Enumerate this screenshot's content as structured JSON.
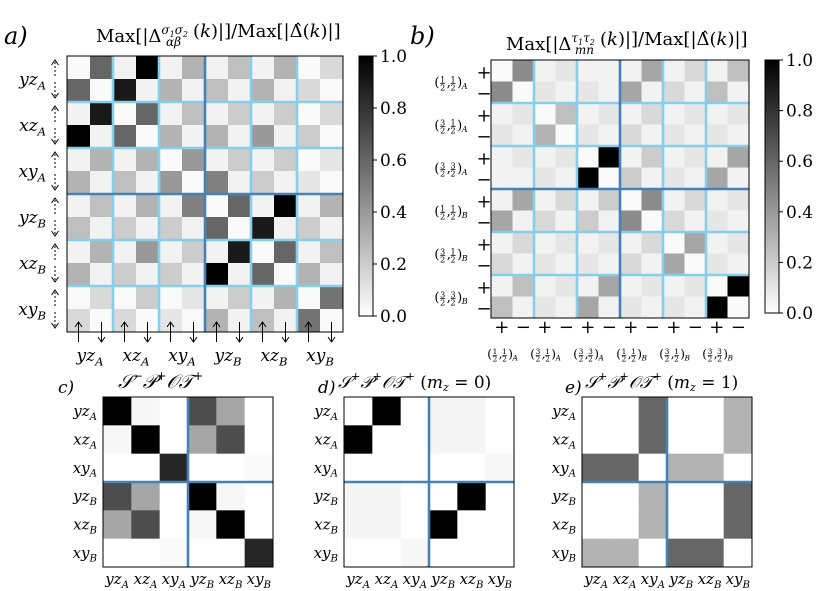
{
  "panel_letters": {
    "a": "a)",
    "b": "b)",
    "c": "c)",
    "d": "d)",
    "e": "e)"
  },
  "colors": {
    "thin_grid": "#87ceeb",
    "thick_grid": "#4682b4",
    "cmap_low": "#ffffff",
    "cmap_high": "#000000"
  },
  "chart_data": [
    {
      "id": "a",
      "type": "heatmap",
      "title": "Max[|Δ^{σ1σ2}_{αβ}(k)|]/Max[|Δ̂(k)|]",
      "row_labels": [
        "yz_A",
        "xz_A",
        "xy_A",
        "yz_B",
        "xz_B",
        "xy_B"
      ],
      "col_labels": [
        "yz_A",
        "xz_A",
        "xy_A",
        "yz_B",
        "xz_B",
        "xy_B"
      ],
      "spin_labels": [
        "↑",
        "↓"
      ],
      "colorbar": {
        "ticks": [
          0.0,
          0.2,
          0.4,
          0.6,
          0.8,
          1.0
        ],
        "tick_labels": [
          "0.0",
          "0.2",
          "0.4",
          "0.6",
          "0.8",
          "1.0"
        ]
      },
      "values": [
        [
          0.02,
          0.6,
          0.05,
          1.0,
          0.05,
          0.3,
          0.05,
          0.25,
          0.05,
          0.3,
          0.02,
          0.15
        ],
        [
          0.6,
          0.02,
          0.9,
          0.05,
          0.3,
          0.05,
          0.25,
          0.05,
          0.3,
          0.05,
          0.15,
          0.02
        ],
        [
          0.05,
          0.9,
          0.02,
          0.6,
          0.05,
          0.25,
          0.05,
          0.2,
          0.05,
          0.2,
          0.02,
          0.15
        ],
        [
          1.0,
          0.05,
          0.6,
          0.02,
          0.3,
          0.05,
          0.3,
          0.05,
          0.4,
          0.05,
          0.2,
          0.02
        ],
        [
          0.05,
          0.3,
          0.05,
          0.3,
          0.02,
          0.4,
          0.05,
          0.2,
          0.05,
          0.2,
          0.02,
          0.1
        ],
        [
          0.3,
          0.05,
          0.25,
          0.05,
          0.4,
          0.02,
          0.5,
          0.05,
          0.2,
          0.05,
          0.1,
          0.02
        ],
        [
          0.05,
          0.25,
          0.05,
          0.3,
          0.05,
          0.5,
          0.02,
          0.6,
          0.05,
          1.0,
          0.05,
          0.3
        ],
        [
          0.25,
          0.05,
          0.2,
          0.05,
          0.2,
          0.05,
          0.6,
          0.02,
          0.9,
          0.05,
          0.2,
          0.05
        ],
        [
          0.05,
          0.3,
          0.05,
          0.4,
          0.05,
          0.2,
          0.05,
          0.9,
          0.02,
          0.6,
          0.05,
          0.25
        ],
        [
          0.3,
          0.05,
          0.2,
          0.05,
          0.2,
          0.05,
          1.0,
          0.05,
          0.6,
          0.02,
          0.3,
          0.05
        ],
        [
          0.02,
          0.15,
          0.02,
          0.2,
          0.02,
          0.1,
          0.05,
          0.2,
          0.05,
          0.3,
          0.02,
          0.55
        ],
        [
          0.15,
          0.02,
          0.15,
          0.02,
          0.1,
          0.02,
          0.3,
          0.05,
          0.25,
          0.05,
          0.55,
          0.02
        ]
      ]
    },
    {
      "id": "b",
      "type": "heatmap",
      "title": "Max[|Δ^{τ1τ2}_{mn}(k)|]/Max[|Δ̂(k)|]",
      "row_labels": [
        "(1/2,1/2)_A",
        "(3/2,1/2)_A",
        "(3/2,3/2)_A",
        "(1/2,1/2)_B",
        "(3/2,1/2)_B",
        "(3/2,3/2)_B"
      ],
      "col_labels": [
        "(1/2,1/2)_A",
        "(3/2,1/2)_A",
        "(3/2,3/2)_A",
        "(1/2,1/2)_B",
        "(3/2,1/2)_B",
        "(3/2,3/2)_B"
      ],
      "sign_labels": [
        "+",
        "−"
      ],
      "colorbar": {
        "ticks": [
          0.0,
          0.2,
          0.4,
          0.6,
          0.8,
          1.0
        ],
        "tick_labels": [
          "0.0",
          "0.2",
          "0.4",
          "0.6",
          "0.8",
          "1.0"
        ]
      },
      "values": [
        [
          0.02,
          0.45,
          0.05,
          0.1,
          0.05,
          0.05,
          0.05,
          0.35,
          0.05,
          0.15,
          0.05,
          0.25
        ],
        [
          0.45,
          0.02,
          0.1,
          0.05,
          0.1,
          0.05,
          0.35,
          0.05,
          0.15,
          0.05,
          0.25,
          0.05
        ],
        [
          0.05,
          0.1,
          0.02,
          0.25,
          0.05,
          0.1,
          0.05,
          0.15,
          0.05,
          0.1,
          0.05,
          0.1
        ],
        [
          0.1,
          0.05,
          0.3,
          0.02,
          0.1,
          0.05,
          0.15,
          0.05,
          0.1,
          0.05,
          0.1,
          0.05
        ],
        [
          0.05,
          0.1,
          0.05,
          0.1,
          0.02,
          1.0,
          0.05,
          0.2,
          0.05,
          0.1,
          0.05,
          0.35
        ],
        [
          0.05,
          0.05,
          0.1,
          0.05,
          1.0,
          0.02,
          0.2,
          0.05,
          0.1,
          0.05,
          0.35,
          0.05
        ],
        [
          0.05,
          0.35,
          0.05,
          0.15,
          0.05,
          0.2,
          0.02,
          0.45,
          0.05,
          0.15,
          0.05,
          0.1
        ],
        [
          0.35,
          0.05,
          0.15,
          0.05,
          0.2,
          0.05,
          0.45,
          0.02,
          0.15,
          0.05,
          0.1,
          0.05
        ],
        [
          0.05,
          0.15,
          0.05,
          0.1,
          0.05,
          0.1,
          0.05,
          0.15,
          0.02,
          0.35,
          0.05,
          0.1
        ],
        [
          0.15,
          0.05,
          0.1,
          0.05,
          0.1,
          0.05,
          0.15,
          0.05,
          0.35,
          0.02,
          0.1,
          0.05
        ],
        [
          0.05,
          0.25,
          0.05,
          0.1,
          0.05,
          0.35,
          0.05,
          0.1,
          0.05,
          0.1,
          0.02,
          1.0
        ],
        [
          0.25,
          0.05,
          0.1,
          0.05,
          0.35,
          0.05,
          0.1,
          0.05,
          0.1,
          0.05,
          1.0,
          0.02
        ]
      ]
    },
    {
      "id": "c",
      "type": "heatmap",
      "title": "S⁻P⁺OT⁺",
      "row_labels": [
        "yz_A",
        "xz_A",
        "xy_A",
        "yz_B",
        "xz_B",
        "xy_B"
      ],
      "col_labels": [
        "yz_A",
        "xz_A",
        "xy_A",
        "yz_B",
        "xz_B",
        "xy_B"
      ],
      "values": [
        [
          1.0,
          0.03,
          0.0,
          0.7,
          0.35,
          0.0
        ],
        [
          0.03,
          1.0,
          0.0,
          0.35,
          0.7,
          0.0
        ],
        [
          0.0,
          0.0,
          0.85,
          0.0,
          0.0,
          0.02
        ],
        [
          0.7,
          0.35,
          0.0,
          1.0,
          0.03,
          0.0
        ],
        [
          0.35,
          0.7,
          0.0,
          0.03,
          1.0,
          0.0
        ],
        [
          0.0,
          0.0,
          0.02,
          0.0,
          0.0,
          0.85
        ]
      ]
    },
    {
      "id": "d",
      "type": "heatmap",
      "title": "S⁺P⁺OT⁺ (m_z = 0)",
      "row_labels": [
        "yz_A",
        "xz_A",
        "xy_A",
        "yz_B",
        "xz_B",
        "xy_B"
      ],
      "col_labels": [
        "yz_A",
        "xz_A",
        "xy_A",
        "yz_B",
        "xz_B",
        "xy_B"
      ],
      "values": [
        [
          0.0,
          1.0,
          0.0,
          0.04,
          0.04,
          0.0
        ],
        [
          1.0,
          0.0,
          0.0,
          0.04,
          0.04,
          0.0
        ],
        [
          0.0,
          0.0,
          0.0,
          0.0,
          0.0,
          0.03
        ],
        [
          0.04,
          0.04,
          0.0,
          0.0,
          1.0,
          0.0
        ],
        [
          0.04,
          0.04,
          0.0,
          1.0,
          0.0,
          0.0
        ],
        [
          0.0,
          0.0,
          0.03,
          0.0,
          0.0,
          0.0
        ]
      ]
    },
    {
      "id": "e",
      "type": "heatmap",
      "title": "S⁺P⁺OT⁺ (m_z = 1)",
      "row_labels": [
        "yz_A",
        "xz_A",
        "xy_A",
        "yz_B",
        "xz_B",
        "xy_B"
      ],
      "col_labels": [
        "yz_A",
        "xz_A",
        "xy_A",
        "yz_B",
        "xz_B",
        "xy_B"
      ],
      "values": [
        [
          0.0,
          0.0,
          0.6,
          0.0,
          0.0,
          0.3
        ],
        [
          0.0,
          0.0,
          0.6,
          0.0,
          0.0,
          0.3
        ],
        [
          0.6,
          0.6,
          0.0,
          0.3,
          0.3,
          0.0
        ],
        [
          0.0,
          0.0,
          0.3,
          0.0,
          0.0,
          0.6
        ],
        [
          0.0,
          0.0,
          0.3,
          0.0,
          0.0,
          0.6
        ],
        [
          0.3,
          0.3,
          0.0,
          0.6,
          0.6,
          0.0
        ]
      ]
    }
  ]
}
